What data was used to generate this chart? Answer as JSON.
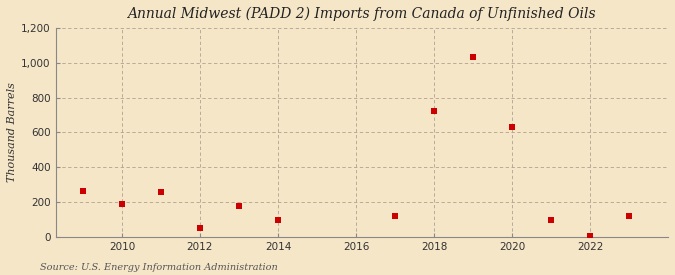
{
  "title": "Annual Midwest (PADD 2) Imports from Canada of Unfinished Oils",
  "ylabel": "Thousand Barrels",
  "source": "Source: U.S. Energy Information Administration",
  "background_color": "#f5e6c8",
  "plot_background_color": "#f5e6c8",
  "marker_color": "#cc0000",
  "xlim": [
    2008.3,
    2024.0
  ],
  "ylim": [
    0,
    1200
  ],
  "yticks": [
    0,
    200,
    400,
    600,
    800,
    1000,
    1200
  ],
  "ytick_labels": [
    "0",
    "200",
    "400",
    "600",
    "800",
    "1,000",
    "1,200"
  ],
  "xtick_positions": [
    2010,
    2012,
    2014,
    2016,
    2018,
    2020,
    2022
  ],
  "data": {
    "years": [
      2009,
      2010,
      2011,
      2012,
      2013,
      2014,
      2017,
      2018,
      2019,
      2020,
      2021,
      2022,
      2023
    ],
    "values": [
      260,
      190,
      255,
      50,
      175,
      95,
      120,
      725,
      1035,
      630,
      95,
      5,
      120
    ]
  }
}
